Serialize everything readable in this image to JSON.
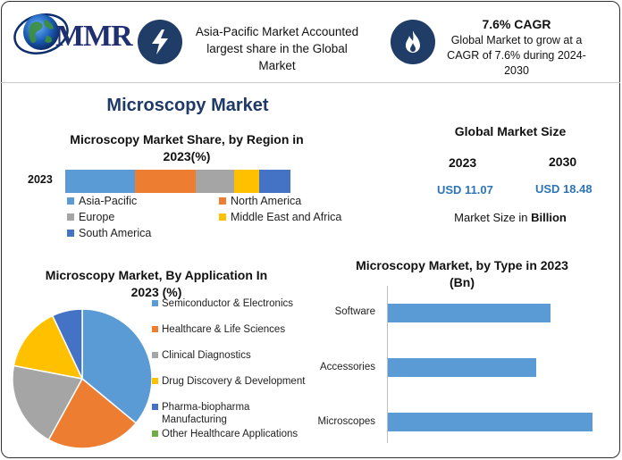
{
  "header": {
    "logo_text": "MMR",
    "insight_1": {
      "text_lines": [
        "Asia-Pacific Market Accounted",
        "largest share in the Global",
        "Market"
      ],
      "icon": "lightning-icon"
    },
    "insight_2": {
      "title": "7.6% CAGR",
      "desc_lines": [
        "Global Market to grow at a",
        "CAGR of 7.6% during 2024-",
        "2030"
      ],
      "icon": "flame-icon"
    }
  },
  "main_title": "Microscopy Market",
  "colors": {
    "blue": "#5b9bd5",
    "orange": "#ed7d31",
    "gray": "#a5a5a5",
    "yellow": "#ffc000",
    "dark_blue": "#4472c4",
    "green": "#70ad47",
    "navy": "#1f3d66",
    "accent_text": "#2e75b6"
  },
  "global_market_size": {
    "title": "Global Market Size",
    "years": [
      "2023",
      "2030"
    ],
    "values": [
      "USD 11.07",
      "USD 18.48"
    ],
    "unit_prefix": "Market Size in ",
    "unit_bold": "Billion"
  },
  "chart_data": [
    {
      "id": "region",
      "type": "bar",
      "stacked": true,
      "orientation": "horizontal",
      "title_lines": [
        "Microscopy Market Share, by Region in",
        "2023(%)"
      ],
      "categories": [
        "2023"
      ],
      "series": [
        {
          "name": "Asia-Pacific",
          "values": [
            31
          ],
          "color": "#5b9bd5"
        },
        {
          "name": "North America",
          "values": [
            27
          ],
          "color": "#ed7d31"
        },
        {
          "name": "Europe",
          "values": [
            17
          ],
          "color": "#a5a5a5"
        },
        {
          "name": "Middle East and Africa",
          "values": [
            11
          ],
          "color": "#ffc000"
        },
        {
          "name": "South America",
          "values": [
            14
          ],
          "color": "#4472c4"
        }
      ],
      "legend": "bottom"
    },
    {
      "id": "application",
      "type": "pie",
      "title_lines": [
        "Microscopy  Market, By Application In",
        "2023 (%)"
      ],
      "slices": [
        {
          "name": "Semiconductor & Electronics",
          "value": 36,
          "color": "#5b9bd5"
        },
        {
          "name": "Healthcare & Life Sciences",
          "value": 22,
          "color": "#ed7d31"
        },
        {
          "name": "Clinical Diagnostics",
          "value": 20,
          "color": "#a5a5a5"
        },
        {
          "name": "Drug Discovery & Development",
          "value": 15,
          "color": "#ffc000"
        },
        {
          "name_lines": [
            "Pharma-biopharma",
            "Manufacturing"
          ],
          "value": 7,
          "color": "#4472c4"
        },
        {
          "name": "Other Healthcare Applications",
          "value": 0,
          "color": "#70ad47"
        }
      ],
      "legend": "right"
    },
    {
      "id": "type",
      "type": "bar",
      "orientation": "horizontal",
      "title_lines": [
        "Microscopy Market, by Type in 2023",
        "(Bn)"
      ],
      "categories": [
        "Software",
        "Accessories",
        "Microscopes"
      ],
      "values": [
        3.5,
        3.2,
        4.4
      ],
      "xlim": [
        0,
        5
      ],
      "color": "#5b9bd5",
      "grid": false
    }
  ]
}
